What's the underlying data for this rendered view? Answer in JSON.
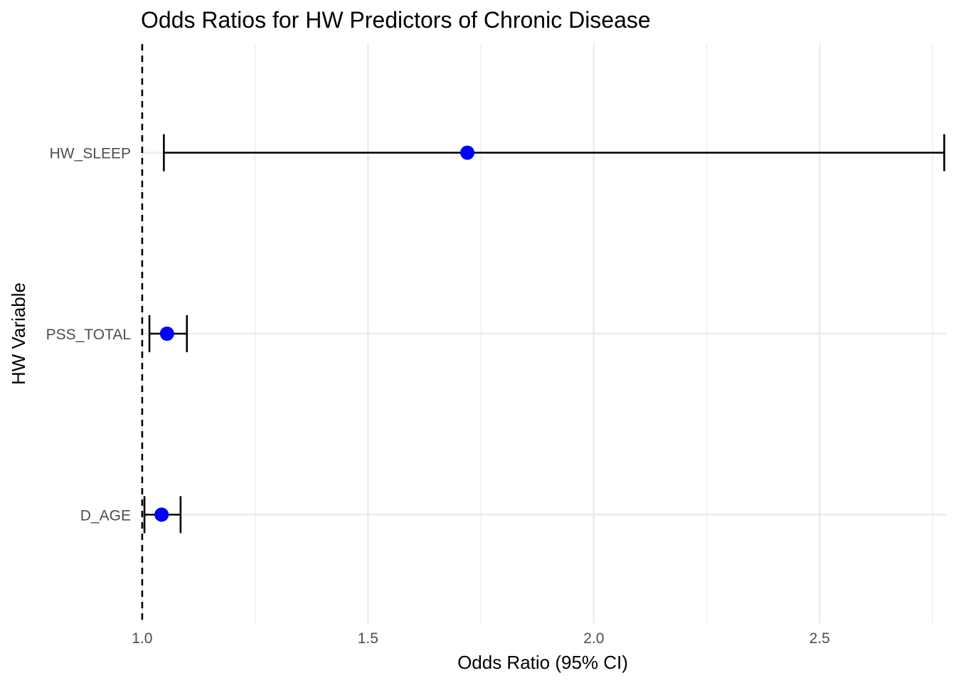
{
  "chart_data": {
    "type": "scatter",
    "subtype": "forest-plot",
    "title": "Odds Ratios for HW Predictors of Chronic Disease",
    "xlabel": "Odds Ratio (95% CI)",
    "ylabel": "HW Variable",
    "xlim": [
      0.997,
      2.78
    ],
    "x_ticks": [
      1.0,
      1.5,
      2.0,
      2.5
    ],
    "x_tick_labels": [
      "1.0",
      "1.5",
      "2.0",
      "2.5"
    ],
    "x_minor_gridlines": [
      1.25,
      1.75,
      2.25,
      2.75
    ],
    "categories": [
      "HW_SLEEP",
      "PSS_TOTAL",
      "D_AGE"
    ],
    "series": [
      {
        "values": [
          1.72,
          1.055,
          1.043
        ],
        "ci_lower": [
          1.048,
          1.016,
          1.005
        ],
        "ci_upper": [
          2.776,
          1.099,
          1.085
        ]
      }
    ],
    "reference_line": {
      "x": 1.0,
      "style": "dashed"
    },
    "grid": true,
    "legend": "none",
    "point_color": "#0000ff",
    "errorbar_color": "#000000",
    "grid_color": "#ebebeb"
  }
}
